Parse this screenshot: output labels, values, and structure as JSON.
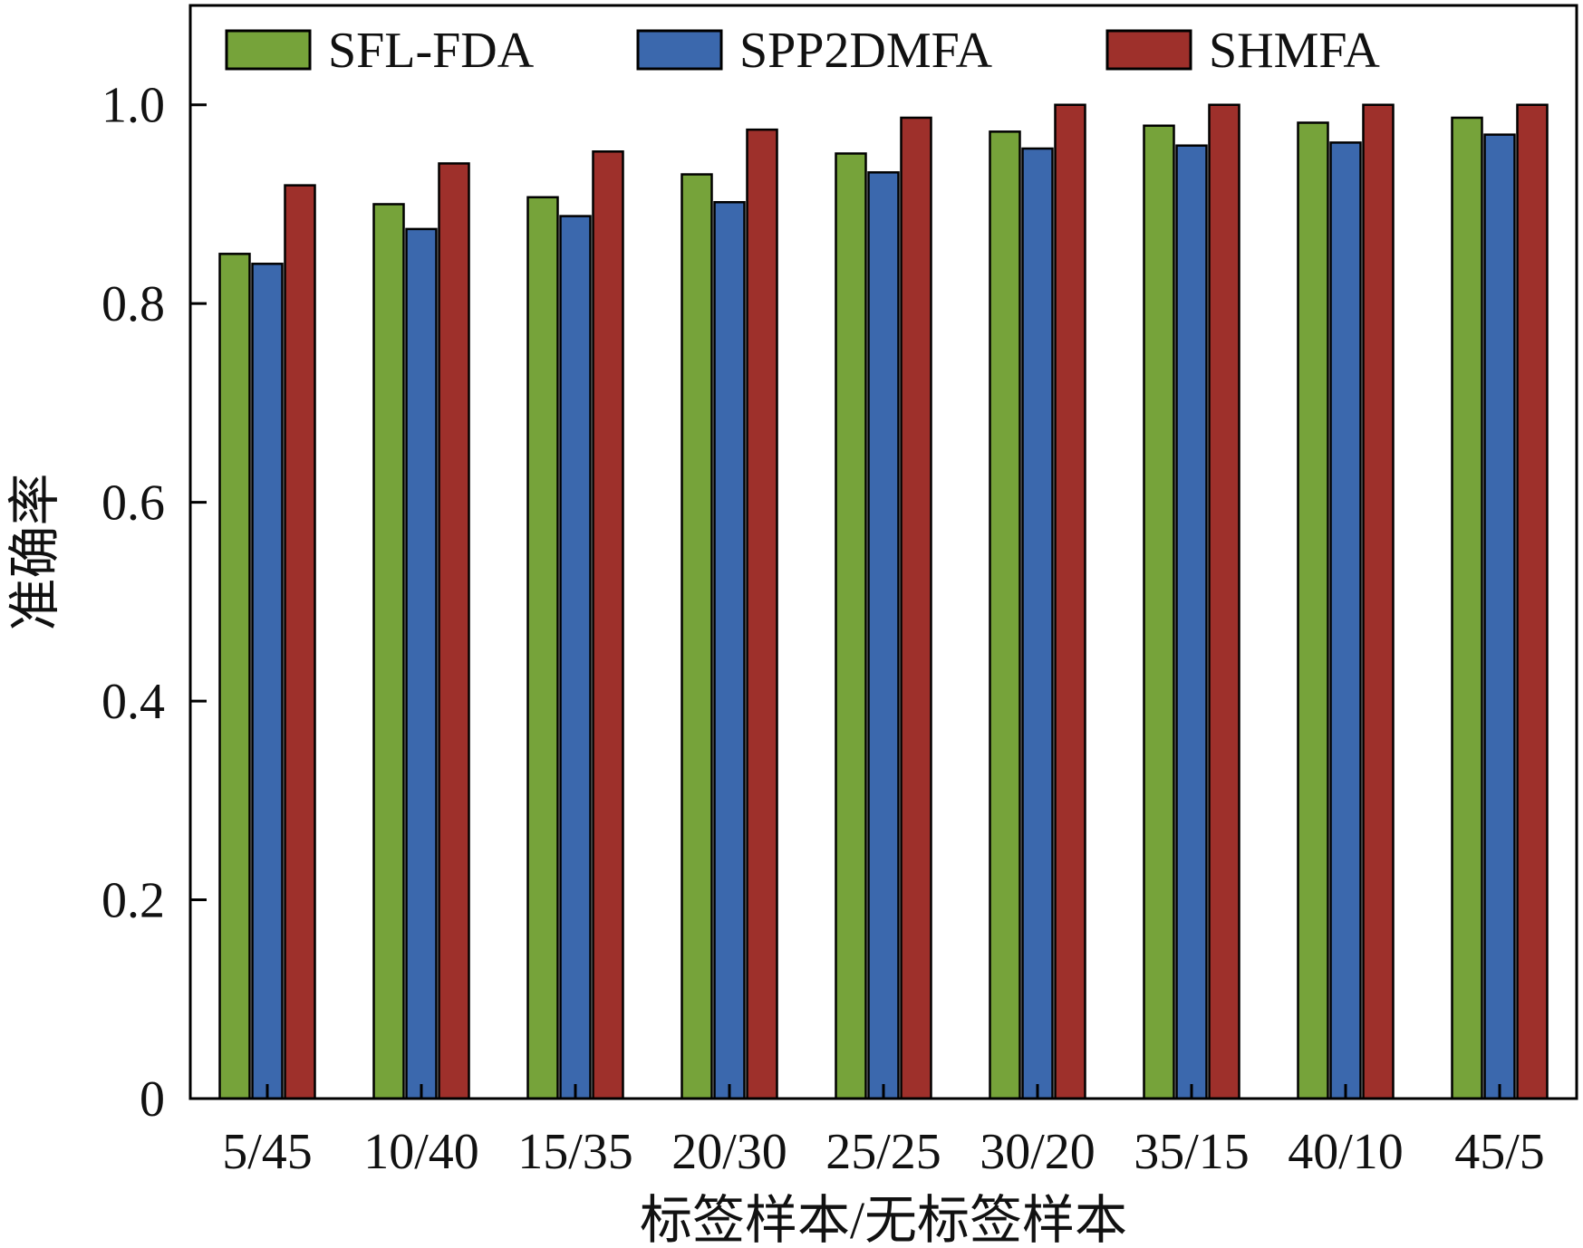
{
  "chart_data": {
    "type": "bar",
    "title": "",
    "xlabel": "标签样本/无标签样本",
    "ylabel": "准确率",
    "categories": [
      "5/45",
      "10/40",
      "15/35",
      "20/30",
      "25/25",
      "30/20",
      "35/15",
      "40/10",
      "45/5"
    ],
    "series": [
      {
        "name": "SFL-FDA",
        "color": "#76a33a",
        "values": [
          0.85,
          0.9,
          0.907,
          0.93,
          0.951,
          0.973,
          0.979,
          0.982,
          0.987
        ]
      },
      {
        "name": "SPP2DMFA",
        "color": "#3b68ad",
        "values": [
          0.84,
          0.875,
          0.888,
          0.902,
          0.932,
          0.956,
          0.959,
          0.962,
          0.97
        ]
      },
      {
        "name": "SHMFA",
        "color": "#9e302b",
        "values": [
          0.919,
          0.941,
          0.953,
          0.975,
          0.987,
          1.0,
          1.0,
          1.0,
          1.0
        ]
      }
    ],
    "ylim": [
      0,
      1.1
    ],
    "yticks": [
      0,
      0.2,
      0.4,
      0.6,
      0.8,
      1.0
    ],
    "ytick_labels": [
      "0",
      "0.2",
      "0.4",
      "0.6",
      "0.8",
      "1.0"
    ],
    "grid": false,
    "legend_position": "top"
  }
}
